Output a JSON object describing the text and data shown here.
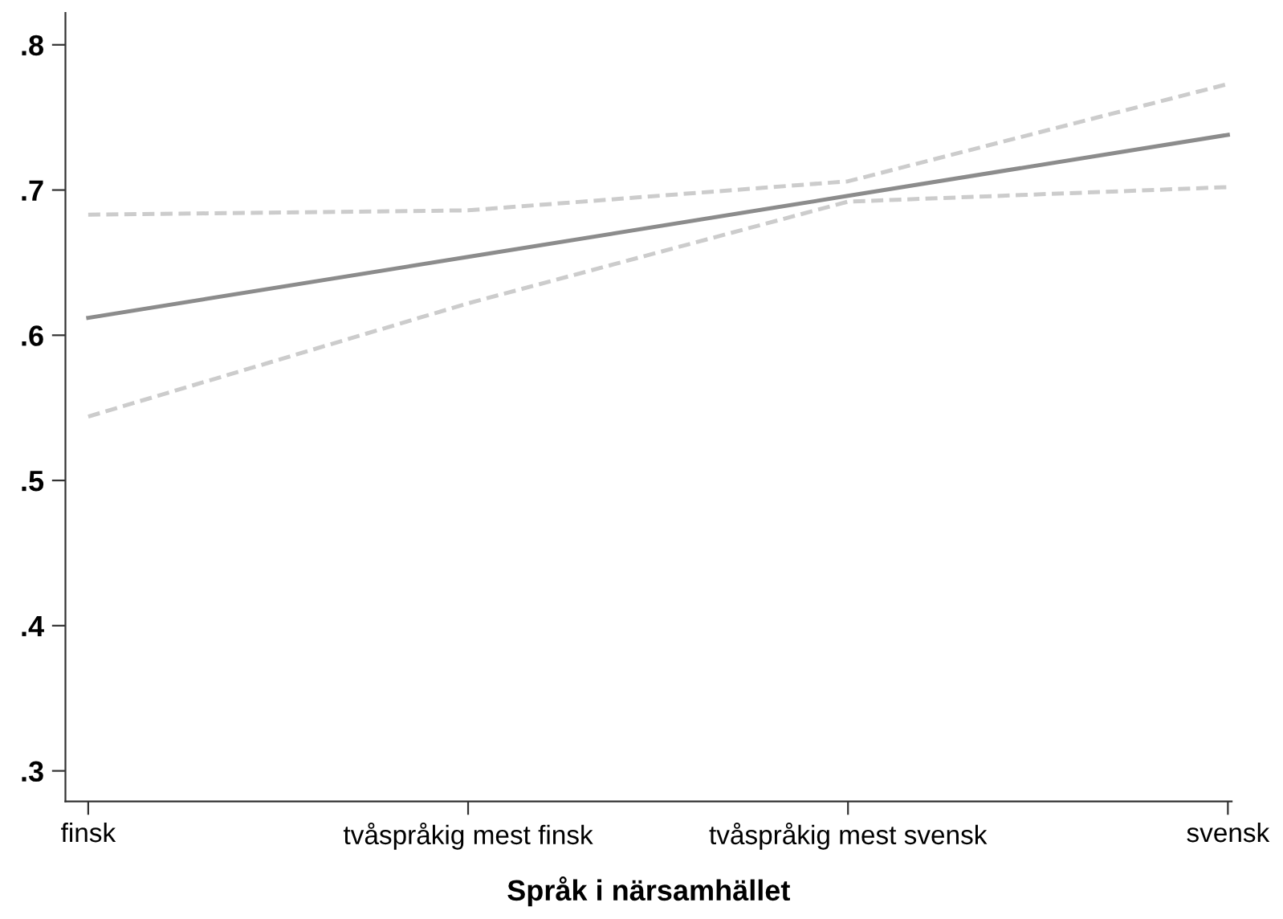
{
  "chart_data": {
    "type": "line",
    "xlabel": "Språk i närsamhället",
    "categories": [
      "finsk",
      "tvåspråkig mest finsk",
      "tvåspråkig mest svensk",
      "svensk"
    ],
    "series": [
      {
        "color": "#8c8c8c",
        "values": [
          0.612,
          0.654,
          0.696,
          0.738
        ],
        "line_style": "solid"
      },
      {
        "color": "#cccccc",
        "values": [
          0.683,
          0.686,
          0.706,
          0.773
        ],
        "line_style": "dashed"
      },
      {
        "color": "#cccccc",
        "values": [
          0.544,
          0.622,
          0.692,
          0.702
        ],
        "line_style": "dashed"
      }
    ],
    "ylim": [
      0.279,
      0.822
    ],
    "yticks": [
      {
        "value": 0.3,
        "label": ".3"
      },
      {
        "value": 0.4,
        "label": ".4"
      },
      {
        "value": 0.5,
        "label": ".5"
      },
      {
        "value": 0.6,
        "label": ".6"
      },
      {
        "value": 0.7,
        "label": ".7"
      },
      {
        "value": 0.8,
        "label": ".8"
      }
    ],
    "grid": false,
    "legend": false
  }
}
